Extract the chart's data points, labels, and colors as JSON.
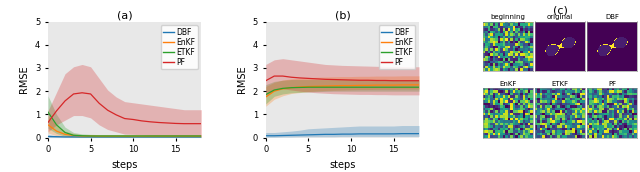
{
  "title_a": "(a)",
  "title_b": "(b)",
  "title_c": "(c)",
  "ylabel": "RMSE",
  "xlabel": "steps",
  "xlim": [
    0,
    18
  ],
  "ylim_a": [
    0,
    5
  ],
  "ylim_b": [
    0,
    5
  ],
  "yticks": [
    0,
    1,
    2,
    3,
    4,
    5
  ],
  "xticks": [
    0,
    5,
    10,
    15
  ],
  "colors": {
    "DBF": "#1f77b4",
    "EnKF": "#ff7f0e",
    "ETKF": "#2ca02c",
    "PF": "#d62728"
  },
  "steps": [
    0,
    1,
    2,
    3,
    4,
    5,
    6,
    7,
    8,
    9,
    10,
    11,
    12,
    13,
    14,
    15,
    16,
    17,
    18
  ],
  "panel_a": {
    "DBF_mean": [
      0.05,
      0.04,
      0.03,
      0.03,
      0.03,
      0.03,
      0.03,
      0.03,
      0.03,
      0.03,
      0.03,
      0.03,
      0.03,
      0.03,
      0.03,
      0.03,
      0.03,
      0.03,
      0.03
    ],
    "DBF_lo": [
      0.0,
      0.0,
      0.0,
      0.0,
      0.0,
      0.0,
      0.0,
      0.0,
      0.0,
      0.0,
      0.0,
      0.0,
      0.0,
      0.0,
      0.0,
      0.0,
      0.0,
      0.0,
      0.0
    ],
    "DBF_hi": [
      0.12,
      0.08,
      0.06,
      0.05,
      0.05,
      0.05,
      0.05,
      0.05,
      0.05,
      0.05,
      0.05,
      0.05,
      0.05,
      0.05,
      0.05,
      0.05,
      0.05,
      0.05,
      0.05
    ],
    "EnKF_mean": [
      0.55,
      0.28,
      0.14,
      0.09,
      0.07,
      0.07,
      0.06,
      0.06,
      0.06,
      0.06,
      0.06,
      0.06,
      0.06,
      0.06,
      0.06,
      0.06,
      0.06,
      0.06,
      0.06
    ],
    "EnKF_lo": [
      0.2,
      0.08,
      0.04,
      0.03,
      0.02,
      0.02,
      0.02,
      0.02,
      0.02,
      0.02,
      0.02,
      0.02,
      0.02,
      0.02,
      0.02,
      0.02,
      0.02,
      0.02,
      0.02
    ],
    "EnKF_hi": [
      0.95,
      0.52,
      0.28,
      0.18,
      0.13,
      0.13,
      0.11,
      0.11,
      0.11,
      0.11,
      0.11,
      0.11,
      0.11,
      0.11,
      0.11,
      0.11,
      0.11,
      0.11,
      0.11
    ],
    "ETKF_mean": [
      1.1,
      0.55,
      0.22,
      0.1,
      0.08,
      0.07,
      0.07,
      0.07,
      0.07,
      0.07,
      0.07,
      0.07,
      0.07,
      0.07,
      0.07,
      0.07,
      0.07,
      0.07,
      0.07
    ],
    "ETKF_lo": [
      0.4,
      0.18,
      0.06,
      0.03,
      0.02,
      0.02,
      0.02,
      0.02,
      0.02,
      0.02,
      0.02,
      0.02,
      0.02,
      0.02,
      0.02,
      0.02,
      0.02,
      0.02,
      0.02
    ],
    "ETKF_hi": [
      1.8,
      1.0,
      0.45,
      0.22,
      0.16,
      0.14,
      0.13,
      0.13,
      0.13,
      0.13,
      0.13,
      0.13,
      0.13,
      0.13,
      0.13,
      0.13,
      0.13,
      0.13,
      0.13
    ],
    "PF_mean": [
      0.65,
      1.15,
      1.58,
      1.88,
      1.93,
      1.88,
      1.48,
      1.18,
      0.98,
      0.82,
      0.78,
      0.72,
      0.68,
      0.65,
      0.63,
      0.61,
      0.6,
      0.6,
      0.6
    ],
    "PF_lo": [
      0.25,
      0.55,
      0.75,
      0.95,
      0.95,
      0.85,
      0.55,
      0.35,
      0.25,
      0.15,
      0.14,
      0.12,
      0.1,
      0.08,
      0.08,
      0.06,
      0.06,
      0.06,
      0.06
    ],
    "PF_hi": [
      1.15,
      1.95,
      2.75,
      3.05,
      3.15,
      3.05,
      2.55,
      2.05,
      1.75,
      1.55,
      1.5,
      1.45,
      1.4,
      1.35,
      1.3,
      1.25,
      1.2,
      1.2,
      1.2
    ]
  },
  "panel_b": {
    "DBF_mean": [
      0.08,
      0.08,
      0.09,
      0.1,
      0.11,
      0.12,
      0.13,
      0.14,
      0.14,
      0.15,
      0.15,
      0.16,
      0.16,
      0.16,
      0.16,
      0.16,
      0.17,
      0.17,
      0.17
    ],
    "DBF_lo": [
      0.02,
      0.02,
      0.03,
      0.03,
      0.04,
      0.04,
      0.04,
      0.04,
      0.04,
      0.05,
      0.05,
      0.05,
      0.05,
      0.05,
      0.05,
      0.05,
      0.05,
      0.05,
      0.05
    ],
    "DBF_hi": [
      0.22,
      0.22,
      0.25,
      0.28,
      0.32,
      0.38,
      0.4,
      0.42,
      0.44,
      0.46,
      0.48,
      0.5,
      0.5,
      0.5,
      0.5,
      0.5,
      0.52,
      0.52,
      0.52
    ],
    "EnKF_mean": [
      1.75,
      2.0,
      2.1,
      2.15,
      2.18,
      2.2,
      2.21,
      2.22,
      2.23,
      2.24,
      2.24,
      2.25,
      2.25,
      2.26,
      2.26,
      2.26,
      2.27,
      2.27,
      2.27
    ],
    "EnKF_lo": [
      1.35,
      1.65,
      1.8,
      1.9,
      1.94,
      1.98,
      2.01,
      2.03,
      2.04,
      2.05,
      2.06,
      2.07,
      2.07,
      2.08,
      2.08,
      2.08,
      2.09,
      2.09,
      2.09
    ],
    "EnKF_hi": [
      2.2,
      2.38,
      2.48,
      2.53,
      2.56,
      2.58,
      2.6,
      2.61,
      2.62,
      2.63,
      2.63,
      2.64,
      2.64,
      2.65,
      2.65,
      2.65,
      2.66,
      2.66,
      2.66
    ],
    "ETKF_mean": [
      1.85,
      2.05,
      2.12,
      2.15,
      2.16,
      2.17,
      2.17,
      2.17,
      2.17,
      2.17,
      2.17,
      2.17,
      2.17,
      2.17,
      2.17,
      2.17,
      2.17,
      2.17,
      2.17
    ],
    "ETKF_lo": [
      1.45,
      1.78,
      1.88,
      1.93,
      1.95,
      1.97,
      1.98,
      1.99,
      2.0,
      2.0,
      2.0,
      2.0,
      2.0,
      2.0,
      2.0,
      2.0,
      2.0,
      2.0,
      2.0
    ],
    "ETKF_hi": [
      2.28,
      2.42,
      2.47,
      2.5,
      2.5,
      2.5,
      2.5,
      2.5,
      2.5,
      2.5,
      2.5,
      2.5,
      2.5,
      2.5,
      2.5,
      2.5,
      2.5,
      2.5,
      2.5
    ],
    "PF_mean": [
      2.45,
      2.65,
      2.65,
      2.6,
      2.57,
      2.55,
      2.53,
      2.51,
      2.5,
      2.49,
      2.48,
      2.47,
      2.47,
      2.46,
      2.46,
      2.45,
      2.45,
      2.45,
      2.45
    ],
    "PF_lo": [
      1.75,
      2.05,
      2.1,
      2.05,
      2.0,
      1.96,
      1.93,
      1.91,
      1.89,
      1.88,
      1.87,
      1.86,
      1.86,
      1.85,
      1.85,
      1.84,
      1.84,
      1.84,
      1.84
    ],
    "PF_hi": [
      3.15,
      3.35,
      3.4,
      3.35,
      3.3,
      3.25,
      3.2,
      3.15,
      3.13,
      3.11,
      3.1,
      3.09,
      3.08,
      3.07,
      3.07,
      3.06,
      3.06,
      3.05,
      3.05
    ]
  },
  "bg_color": "#e8e8e8"
}
